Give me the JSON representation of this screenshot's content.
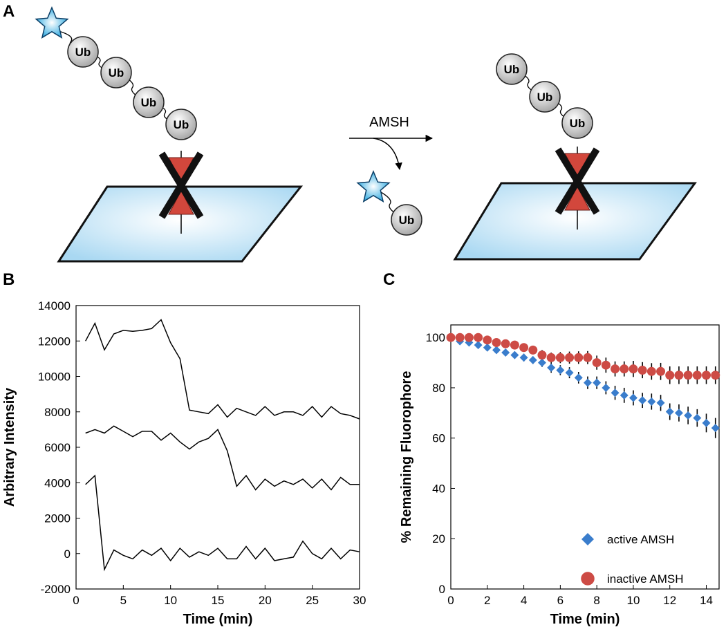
{
  "panel_labels": [
    "A",
    "B",
    "C"
  ],
  "diagram": {
    "ub": [
      "Ub",
      "Ub",
      "Ub",
      "Ub",
      "Ub",
      "Ub",
      "Ub",
      "Ub"
    ],
    "enzyme": "AMSH"
  },
  "chart_data": [
    {
      "type": "line",
      "xlabel": "Time (min)",
      "ylabel": "Arbitrary Intensity",
      "x": [
        1,
        2,
        3,
        4,
        5,
        6,
        7,
        8,
        9,
        10,
        11,
        12,
        13,
        14,
        15,
        16,
        17,
        18,
        19,
        20,
        21,
        22,
        23,
        24,
        25,
        26,
        27,
        28,
        29,
        30
      ],
      "series": [
        {
          "color": "#000000",
          "values": [
            12000,
            13000,
            11500,
            12400,
            12600,
            12550,
            12600,
            12700,
            13200,
            11900,
            11000,
            8100,
            8000,
            7900,
            8400,
            7700,
            8200,
            8000,
            7800,
            8300,
            7800,
            8000,
            8000,
            7800,
            8300,
            7700,
            8300,
            7900,
            7800,
            7600
          ]
        },
        {
          "color": "#000000",
          "values": [
            6800,
            7000,
            6800,
            7200,
            6900,
            6600,
            6900,
            6900,
            6400,
            6800,
            6300,
            5900,
            6300,
            6500,
            7000,
            5800,
            3800,
            4400,
            3600,
            4200,
            3800,
            4100,
            3900,
            4200,
            3700,
            4200,
            3600,
            4300,
            3900,
            3900
          ]
        },
        {
          "color": "#000000",
          "values": [
            3900,
            4400,
            -900,
            200,
            -100,
            -300,
            200,
            -100,
            300,
            -400,
            300,
            -200,
            100,
            -100,
            300,
            -300,
            -300,
            400,
            -300,
            300,
            -400,
            -300,
            -200,
            700,
            0,
            -300,
            300,
            -300,
            200,
            100
          ]
        }
      ],
      "xlim": [
        0,
        30
      ],
      "xticks": [
        0,
        5,
        10,
        15,
        20,
        25,
        30
      ],
      "ylim": [
        -2000,
        14000
      ],
      "yticks": [
        -2000,
        0,
        2000,
        4000,
        6000,
        8000,
        10000,
        12000,
        14000
      ]
    },
    {
      "type": "scatter",
      "xlabel": "Time (min)",
      "ylabel": "% Remaining Fluorophore",
      "x": [
        0,
        0.5,
        1,
        1.5,
        2,
        2.5,
        3,
        3.5,
        4,
        4.5,
        5,
        5.5,
        6,
        6.5,
        7,
        7.5,
        8,
        8.5,
        9,
        9.5,
        10,
        10.5,
        11,
        11.5,
        12,
        12.5,
        13,
        13.5,
        14,
        14.5
      ],
      "series": [
        {
          "name": "active AMSH",
          "color": "#3a7dcc",
          "marker": "diamond",
          "values": [
            100,
            98.5,
            98,
            97,
            96,
            95,
            94,
            93,
            92,
            91,
            90,
            88,
            87,
            86,
            84,
            82,
            82,
            80,
            78,
            77,
            76,
            75,
            74.5,
            74,
            70.5,
            70,
            69,
            68,
            66,
            64
          ],
          "errors": [
            0,
            0.5,
            0.5,
            0.8,
            1,
            1,
            1.2,
            1.3,
            1.5,
            1.5,
            1.7,
            2,
            2,
            2.2,
            2.3,
            2.5,
            2.5,
            2.6,
            2.8,
            3,
            3,
            3,
            3.2,
            3.2,
            3.3,
            3.4,
            3.5,
            3.5,
            3.7,
            4
          ]
        },
        {
          "name": "inactive AMSH",
          "color": "#cd4b45",
          "marker": "circle",
          "values": [
            100,
            100,
            100,
            100,
            99,
            98,
            97.5,
            97,
            96,
            95,
            93,
            92,
            92,
            92,
            92,
            92,
            90,
            89,
            87.5,
            87.5,
            87.5,
            87,
            86.5,
            86.5,
            85,
            85,
            85,
            85,
            85,
            85
          ],
          "errors": [
            0,
            0.3,
            0.5,
            0.5,
            0.7,
            1,
            1,
            1.2,
            1.5,
            1.6,
            2,
            2,
            2.2,
            2.4,
            2.5,
            2.6,
            2.8,
            3,
            3,
            3,
            3.2,
            3.2,
            3.3,
            3.4,
            3.5,
            3.5,
            3.5,
            3.5,
            3.5,
            3.5
          ]
        }
      ],
      "xlim": [
        0,
        14.7
      ],
      "xticks": [
        0,
        2,
        4,
        6,
        8,
        10,
        12,
        14
      ],
      "ylim": [
        0,
        105
      ],
      "yticks": [
        0,
        20,
        40,
        60,
        80,
        100
      ],
      "legend": "lower right"
    }
  ]
}
